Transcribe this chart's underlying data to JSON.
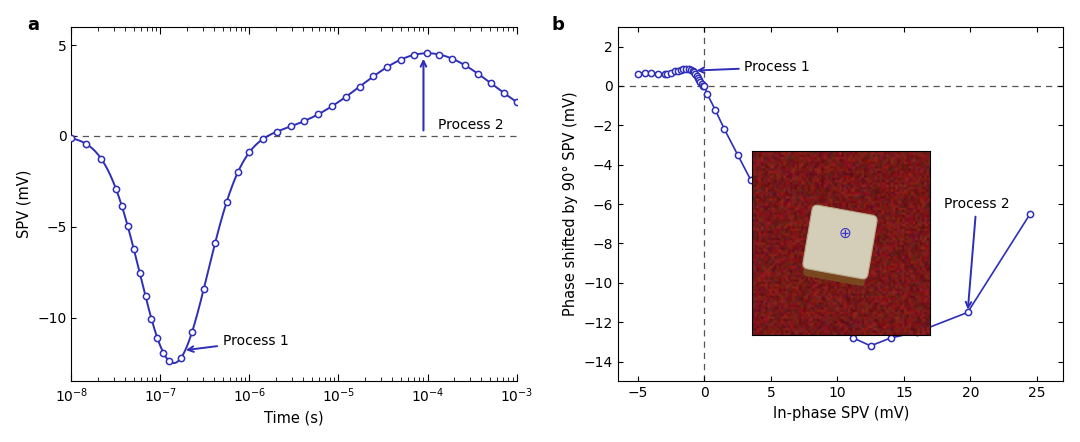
{
  "panel_a": {
    "label": "a",
    "xlabel": "Time (s)",
    "ylabel": "SPV (mV)",
    "yticks": [
      -10,
      -5,
      0,
      5
    ],
    "ylim": [
      -13.5,
      6
    ],
    "process1_text": "Process 1",
    "process2_text": "Process 2"
  },
  "panel_b": {
    "label": "b",
    "xlabel": "In-phase SPV (mV)",
    "ylabel": "Phase shifted by 90° SPV (mV)",
    "xlim": [
      -6.5,
      27
    ],
    "ylim": [
      -15,
      3
    ],
    "xticks": [
      -5,
      0,
      5,
      10,
      15,
      20,
      25
    ],
    "yticks": [
      -14,
      -12,
      -10,
      -8,
      -6,
      -4,
      -2,
      0,
      2
    ],
    "process1_text": "Process 1",
    "process2_text": "Process 2"
  },
  "line_color": "#2e2eb8",
  "fig_bg": "#ffffff"
}
